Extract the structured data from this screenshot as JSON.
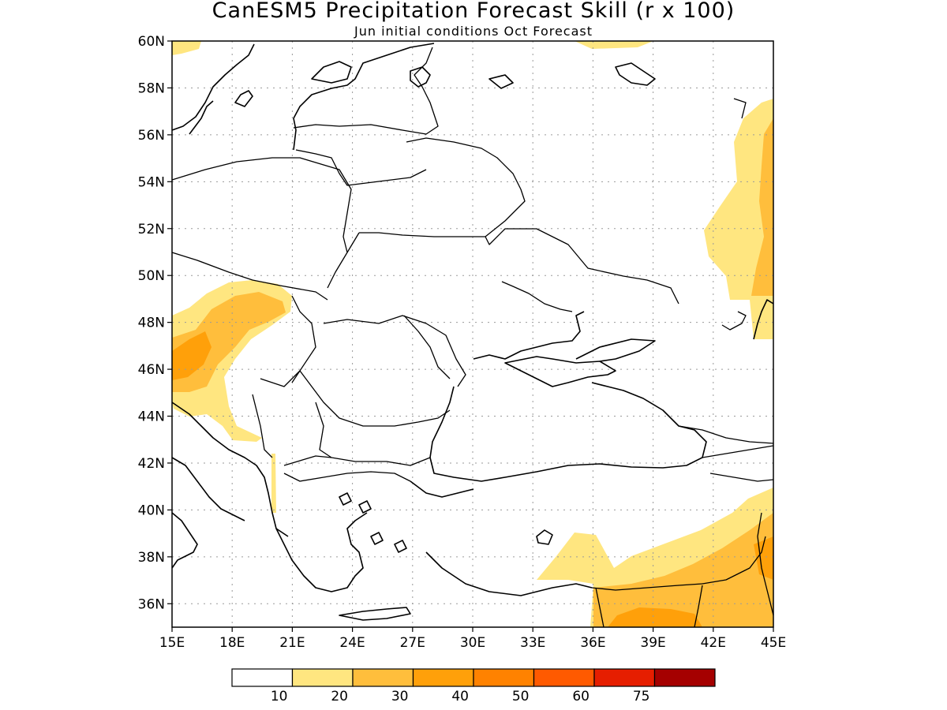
{
  "title": "CanESM5 Precipitation Forecast Skill (r x 100)",
  "subtitle": "Jun initial conditions  Oct Forecast",
  "colors": {
    "c10": "#ffe680",
    "c20": "#ffbe3c",
    "c30": "#ffa00a",
    "c40": "#ff8200",
    "c50": "#ff5a00",
    "c60": "#e61e00",
    "c75": "#a50000"
  },
  "map": {
    "lon_range": [
      15,
      45
    ],
    "lat_range": [
      35,
      60
    ],
    "lon_ticks": [
      "15E",
      "18E",
      "21E",
      "24E",
      "27E",
      "30E",
      "33E",
      "36E",
      "39E",
      "42E",
      "45E"
    ],
    "lat_ticks": [
      "36N",
      "38N",
      "40N",
      "42N",
      "44N",
      "46N",
      "48N",
      "50N",
      "52N",
      "54N",
      "56N",
      "58N",
      "60N"
    ]
  },
  "colorbar": {
    "labels": [
      "10",
      "20",
      "30",
      "40",
      "50",
      "60",
      "75"
    ]
  }
}
